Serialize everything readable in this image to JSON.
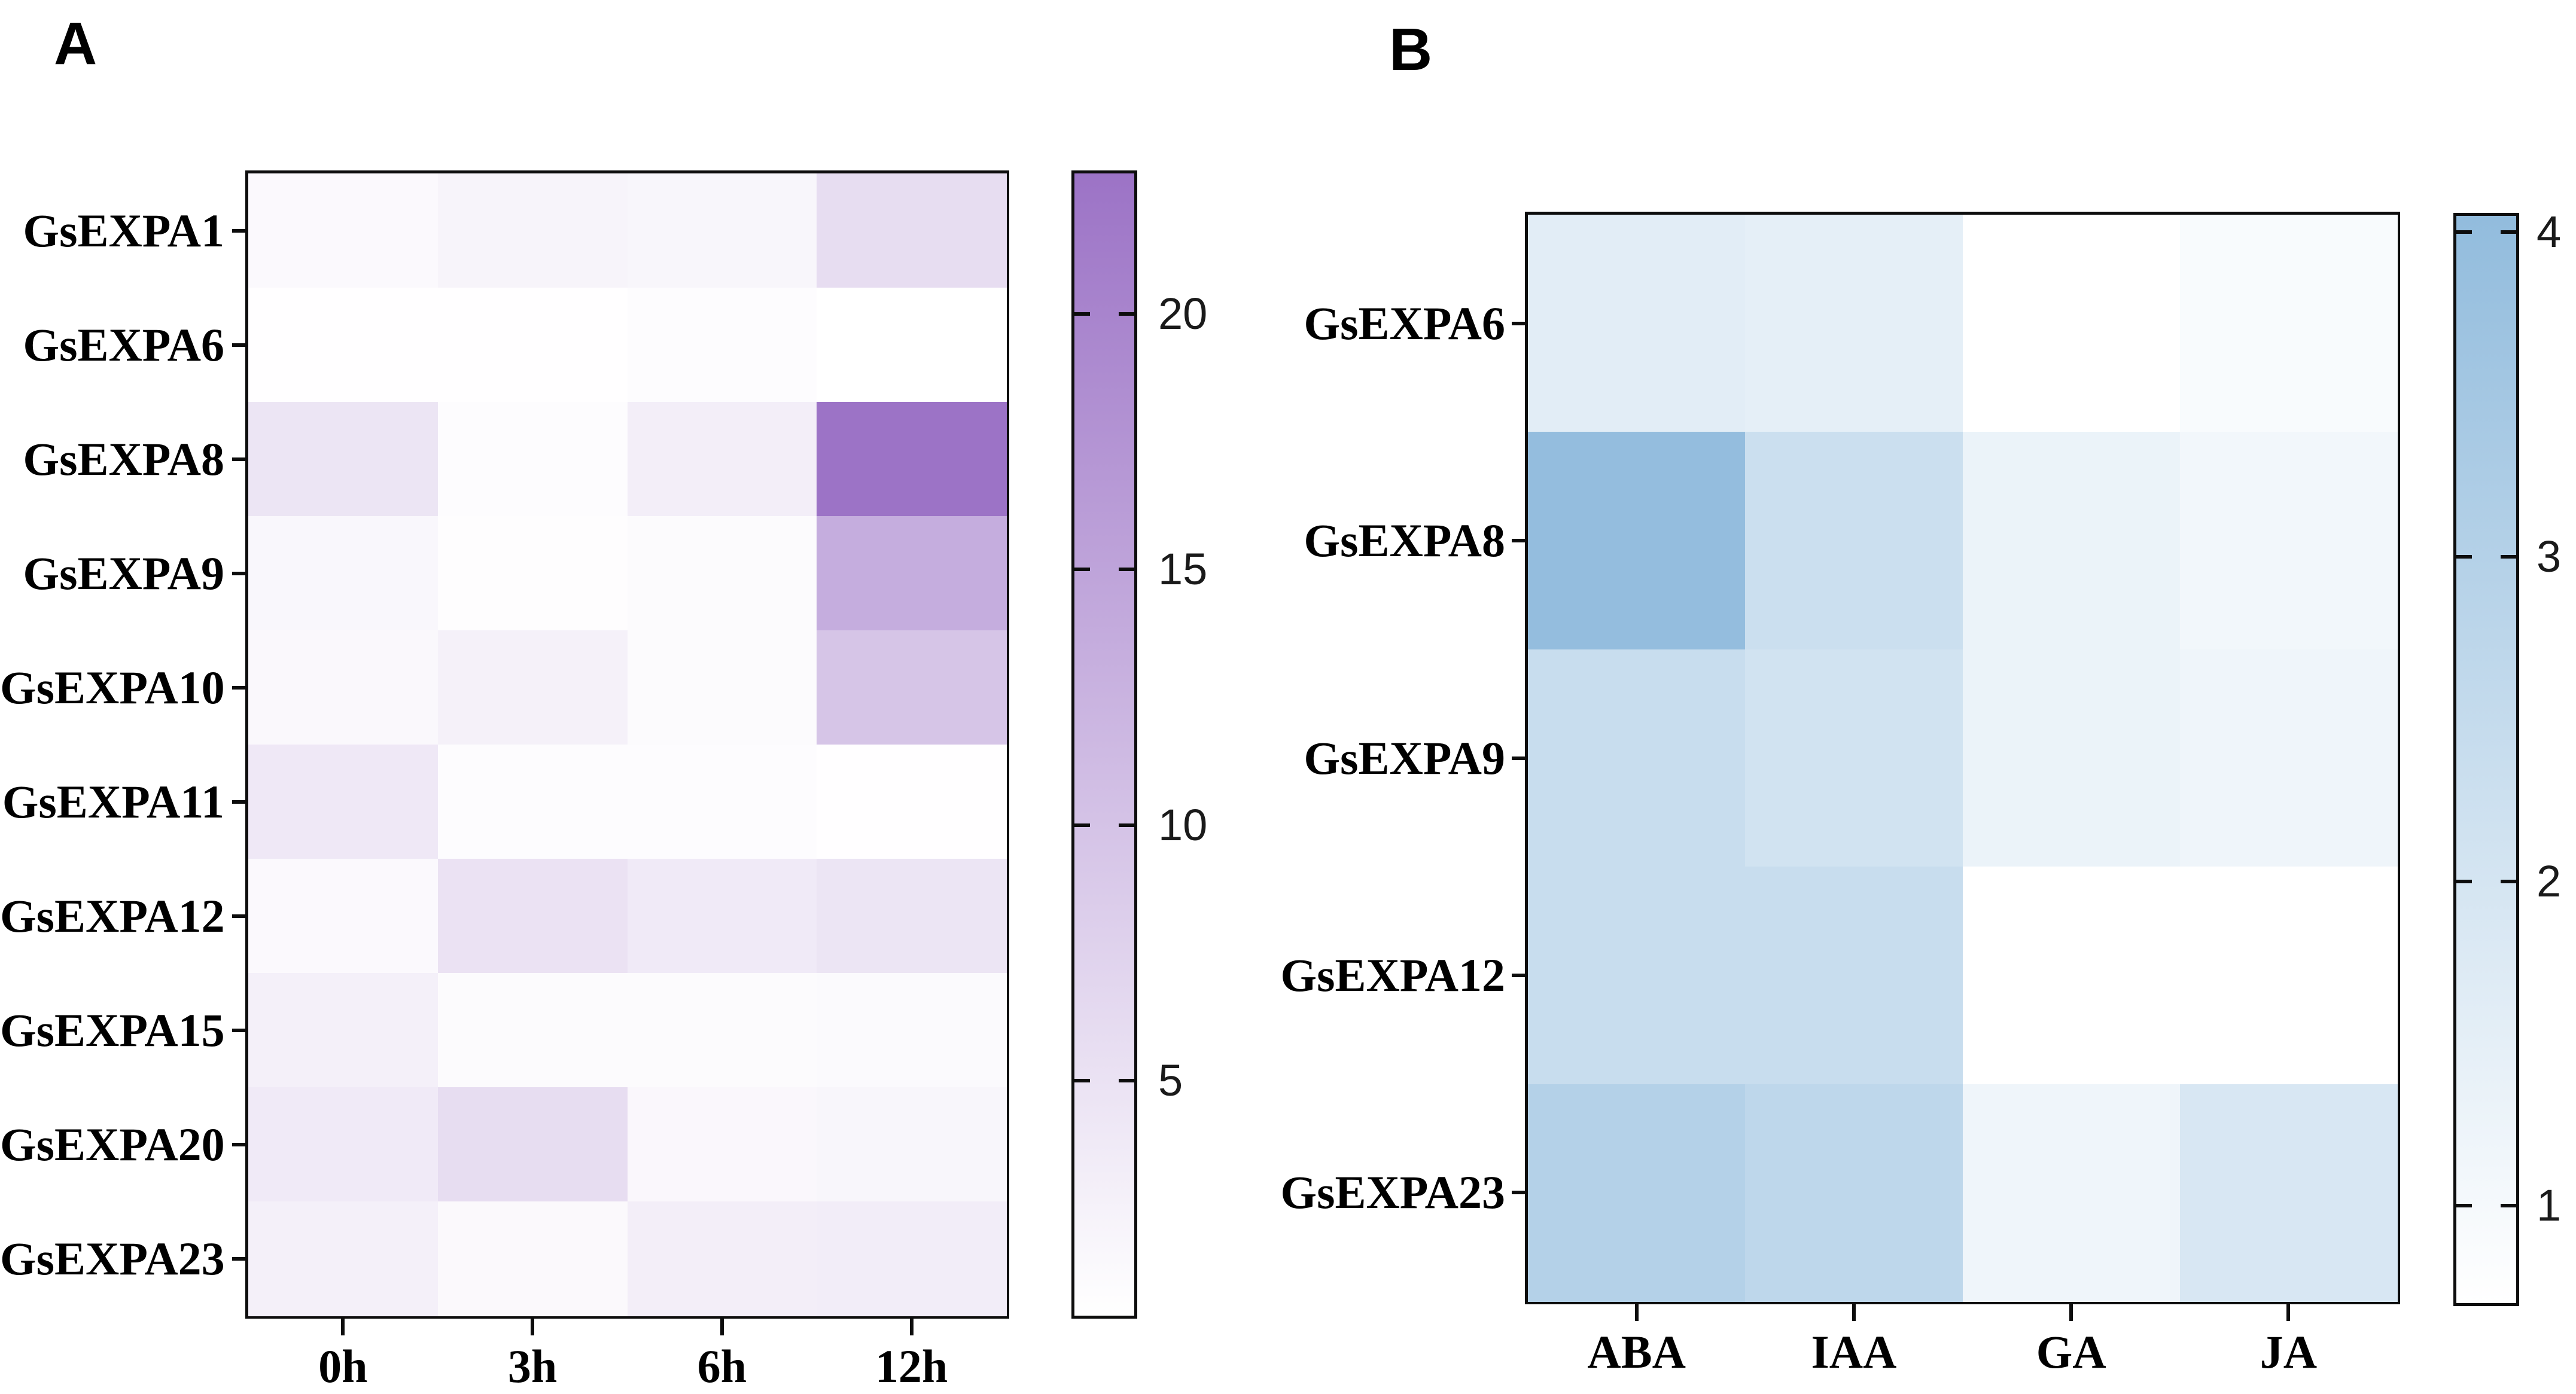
{
  "figure_background": "#ffffff",
  "chart_data": [
    {
      "id": "panel-a-heatmap",
      "panel_label": "A",
      "type": "heatmap",
      "rows": [
        "GsEXPA1",
        "GsEXPA6",
        "GsEXPA8",
        "GsEXPA9",
        "GsEXPA10",
        "GsEXPA11",
        "GsEXPA12",
        "GsEXPA15",
        "GsEXPA20",
        "GsEXPA23"
      ],
      "columns": [
        "0h",
        "3h",
        "6h",
        "12h"
      ],
      "values": [
        [
          1.3,
          2.2,
          1.9,
          5.9
        ],
        [
          0.5,
          0.5,
          0.9,
          0.4
        ],
        [
          4.6,
          0.8,
          3.1,
          22.7
        ],
        [
          1.7,
          0.7,
          1.1,
          13.5
        ],
        [
          1.5,
          2.6,
          1.1,
          9.7
        ],
        [
          4.0,
          0.8,
          0.9,
          0.5
        ],
        [
          1.3,
          5.0,
          3.7,
          4.6
        ],
        [
          2.8,
          1.1,
          1.0,
          1.2
        ],
        [
          3.7,
          5.9,
          1.6,
          1.9
        ],
        [
          2.8,
          1.4,
          3.1,
          3.3
        ]
      ],
      "vmin": 0.4,
      "vmax": 22.75,
      "colormap": {
        "low": "#ffffff",
        "high": "#9c73c6"
      },
      "colorbar": {
        "position": "right",
        "ticks": [
          5,
          10,
          15,
          20
        ]
      },
      "grid": false,
      "legend": "colorbar-right"
    },
    {
      "id": "panel-b-heatmap",
      "panel_label": "B",
      "type": "heatmap",
      "rows": [
        "GsEXPA6",
        "GsEXPA8",
        "GsEXPA9",
        "GsEXPA12",
        "GsEXPA23"
      ],
      "columns": [
        "ABA",
        "IAA",
        "GA",
        "JA"
      ],
      "values": [
        [
          1.6,
          1.5,
          0.7,
          0.9
        ],
        [
          4.0,
          2.3,
          1.3,
          1.1
        ],
        [
          2.4,
          2.1,
          1.3,
          1.2
        ],
        [
          2.4,
          2.4,
          0.7,
          0.7
        ],
        [
          3.0,
          2.7,
          1.2,
          1.9
        ]
      ],
      "vmin": 0.7,
      "vmax": 4.05,
      "colormap": {
        "low": "#ffffff",
        "high": "#92bcdd"
      },
      "colorbar": {
        "position": "right",
        "ticks": [
          1,
          2,
          3,
          4
        ]
      },
      "grid": false,
      "legend": "colorbar-right"
    }
  ]
}
